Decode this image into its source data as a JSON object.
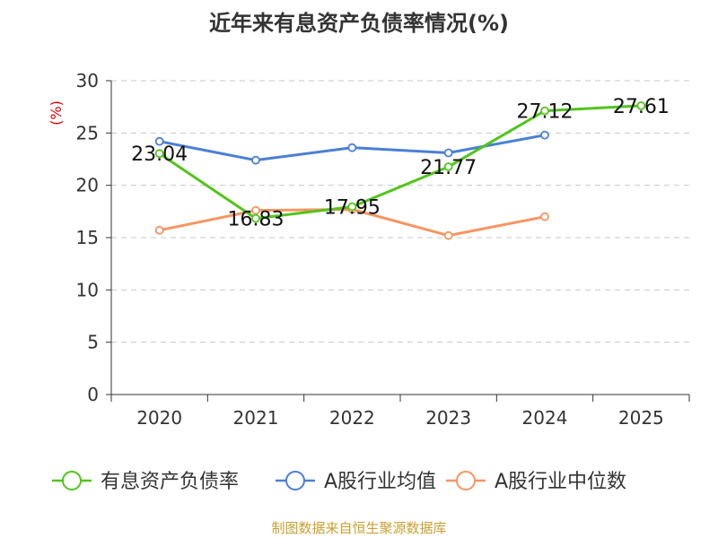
{
  "colors": {
    "green": "#52c41a",
    "blue": "#4a7fd6",
    "orange": "#f79560",
    "unit": "#e00000",
    "source": "#c8a032",
    "grid": "#c8c8c8"
  },
  "chart_data": {
    "type": "line",
    "title": "近年来有息资产负债率情况(%)",
    "unit_label": "(%)",
    "categories": [
      "2020",
      "2021",
      "2022",
      "2023",
      "2024",
      "2025"
    ],
    "ylim": [
      0,
      30
    ],
    "y_ticks": [
      "0",
      "5",
      "10",
      "15",
      "20",
      "25",
      "30"
    ],
    "grid": "horizontal-dashed",
    "legend_position": "bottom",
    "series": [
      {
        "name": "有息资产负债率",
        "color": "#52c41a",
        "values": [
          23.04,
          16.83,
          17.95,
          21.77,
          27.12,
          27.61
        ],
        "labels": [
          "23.04",
          "16.83",
          "17.95",
          "21.77",
          "27.12",
          "27.61"
        ]
      },
      {
        "name": "A股行业均值",
        "color": "#4a7fd6",
        "values": [
          24.2,
          22.4,
          23.6,
          23.1,
          24.8,
          null
        ]
      },
      {
        "name": "A股行业中位数",
        "color": "#f79560",
        "values": [
          15.7,
          17.6,
          17.7,
          15.2,
          17.0,
          null
        ]
      }
    ],
    "source": "制图数据来自恒生聚源数据库"
  }
}
